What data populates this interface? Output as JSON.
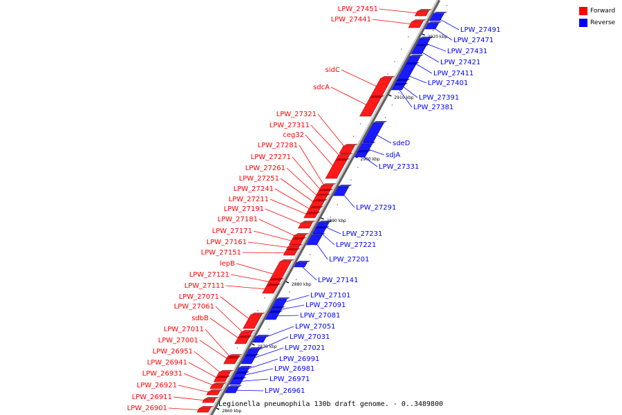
{
  "legend": {
    "forward": {
      "label": "Forward",
      "color": "#ff0000"
    },
    "reverse": {
      "label": "Reverse",
      "color": "#0000ff"
    }
  },
  "caption": "Legionella pneumophila 130b draft genome. - 0..3489800",
  "genome": {
    "start_bp": 2860000,
    "end_bp": 2928000,
    "backbone_color": "#a0a0a0"
  },
  "ticks": [
    {
      "label": "2860 kbp",
      "bp": 2860000
    },
    {
      "label": "2870 kbp",
      "bp": 2870000
    },
    {
      "label": "2880 kbp",
      "bp": 2880000
    },
    {
      "label": "2890 kbp",
      "bp": 2890000
    },
    {
      "label": "2900 kbp",
      "bp": 2900000
    },
    {
      "label": "2910 kbp",
      "bp": 2910000
    },
    {
      "label": "2920 kbp",
      "bp": 2920000
    }
  ],
  "forward_genes": [
    {
      "name": "LPW_27451"
    },
    {
      "name": "LPW_27441"
    },
    {
      "name": "sidC"
    },
    {
      "name": "sdcA"
    },
    {
      "name": "LPW_27321"
    },
    {
      "name": "LPW_27311"
    },
    {
      "name": "ceg32"
    },
    {
      "name": "LPW_27281"
    },
    {
      "name": "LPW_27271"
    },
    {
      "name": "LPW_27261"
    },
    {
      "name": "LPW_27251"
    },
    {
      "name": "LPW_27241"
    },
    {
      "name": "LPW_27211"
    },
    {
      "name": "LPW_27191"
    },
    {
      "name": "LPW_27181"
    },
    {
      "name": "LPW_27171"
    },
    {
      "name": "LPW_27161"
    },
    {
      "name": "LPW_27151"
    },
    {
      "name": "lepB"
    },
    {
      "name": "LPW_27121"
    },
    {
      "name": "LPW_27111"
    },
    {
      "name": "LPW_27071"
    },
    {
      "name": "LPW_27061"
    },
    {
      "name": "sdbB"
    },
    {
      "name": "LPW_27011"
    },
    {
      "name": "LPW_27001"
    },
    {
      "name": "LPW_26951"
    },
    {
      "name": "LPW_26941"
    },
    {
      "name": "LPW_26931"
    },
    {
      "name": "LPW_26921"
    },
    {
      "name": "LPW_26911"
    },
    {
      "name": "LPW_26901"
    }
  ],
  "reverse_genes": [
    {
      "name": "LPW_27491"
    },
    {
      "name": "LPW_27471"
    },
    {
      "name": "LPW_27431"
    },
    {
      "name": "LPW_27421"
    },
    {
      "name": "LPW_27411"
    },
    {
      "name": "LPW_27401"
    },
    {
      "name": "LPW_27391"
    },
    {
      "name": "LPW_27381"
    },
    {
      "name": "sdeD"
    },
    {
      "name": "sdjA"
    },
    {
      "name": "LPW_27331"
    },
    {
      "name": "LPW_27291"
    },
    {
      "name": "LPW_27231"
    },
    {
      "name": "LPW_27221"
    },
    {
      "name": "LPW_27201"
    },
    {
      "name": "LPW_27141"
    },
    {
      "name": "LPW_27101"
    },
    {
      "name": "LPW_27091"
    },
    {
      "name": "LPW_27081"
    },
    {
      "name": "LPW_27051"
    },
    {
      "name": "LPW_27031"
    },
    {
      "name": "LPW_27021"
    },
    {
      "name": "LPW_26991"
    },
    {
      "name": "LPW_26981"
    },
    {
      "name": "LPW_26971"
    },
    {
      "name": "LPW_26961"
    }
  ]
}
